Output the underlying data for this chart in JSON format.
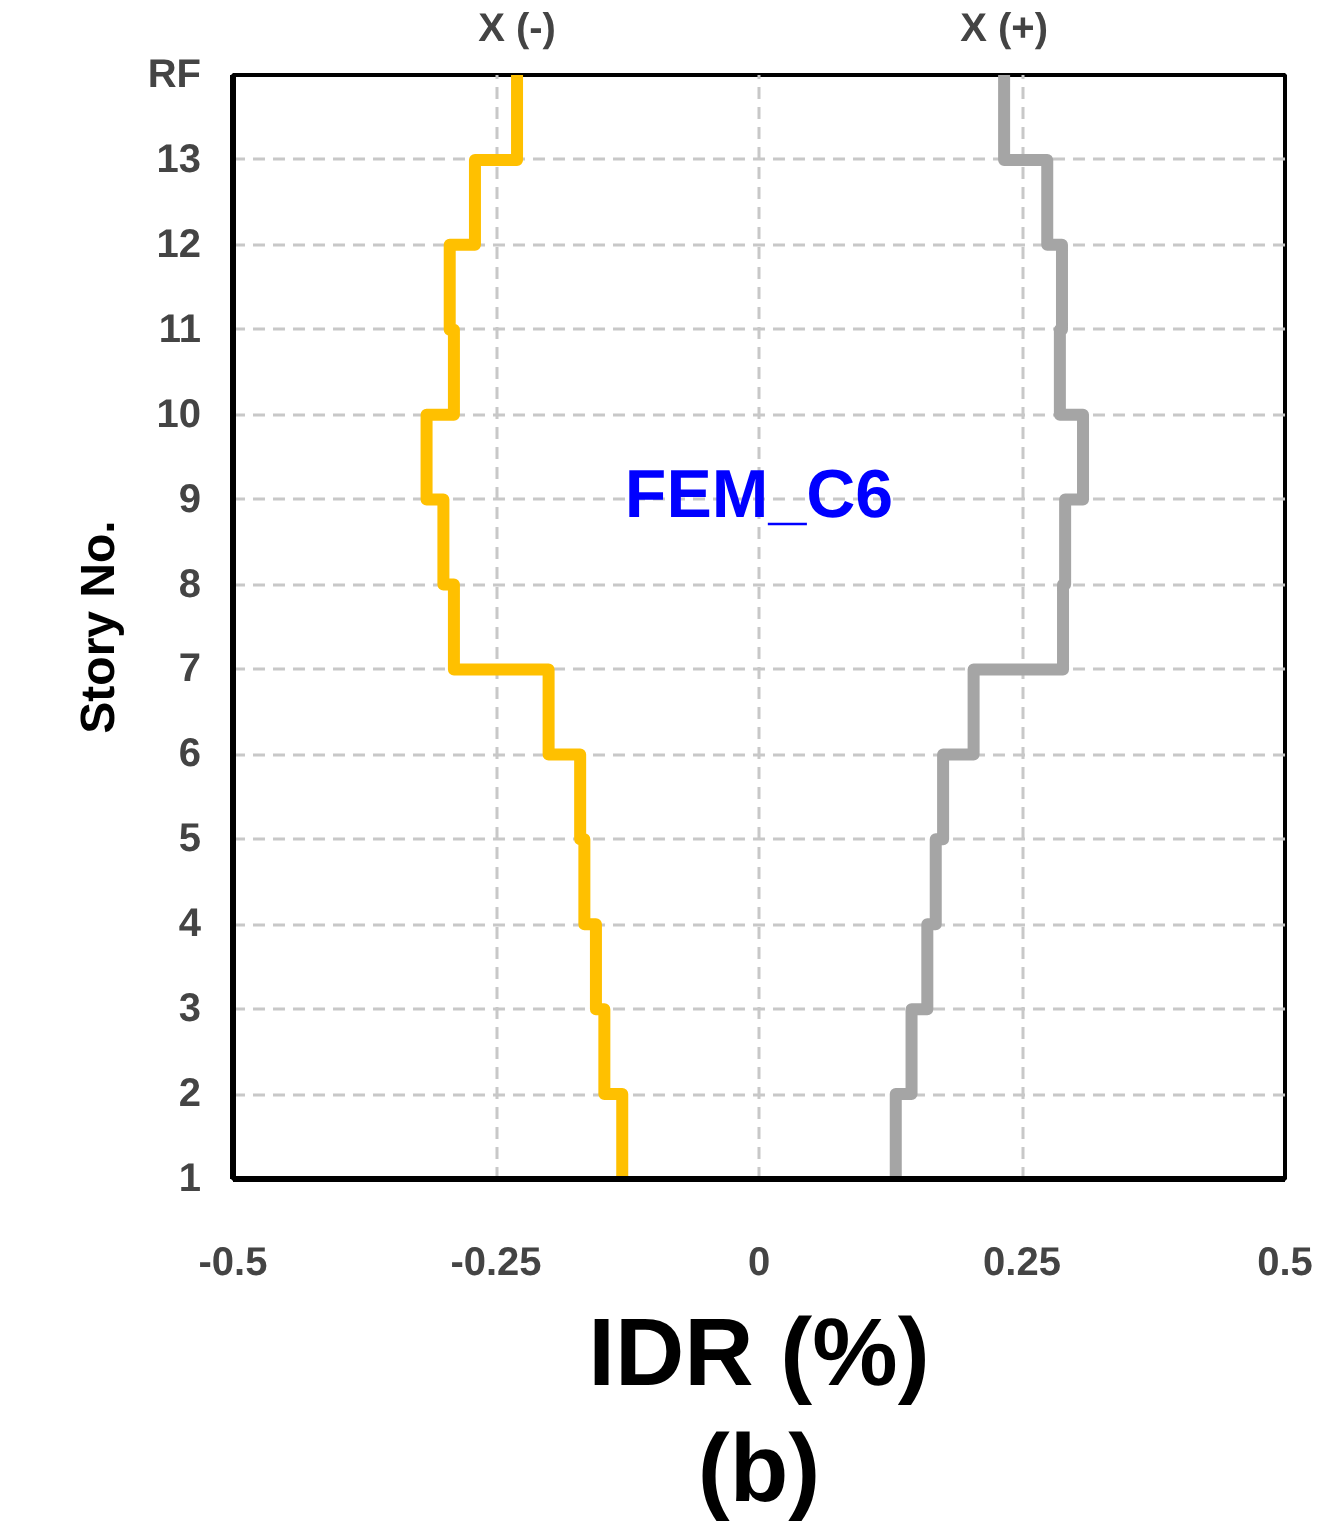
{
  "chart_data": {
    "type": "step",
    "orientation": "horizontal",
    "categories": [
      "RF",
      "13",
      "12",
      "11",
      "10",
      "9",
      "8",
      "7",
      "6",
      "5",
      "4",
      "3",
      "2",
      "1"
    ],
    "series": [
      {
        "name": "X (-)",
        "color": "#ffc000",
        "values": [
          -0.23,
          -0.23,
          -0.27,
          -0.294,
          -0.29,
          -0.316,
          -0.3,
          -0.29,
          -0.2,
          -0.17,
          -0.166,
          -0.155,
          -0.147,
          -0.13
        ]
      },
      {
        "name": "X (+)",
        "color": "#a5a5a5",
        "values": [
          0.233,
          0.233,
          0.274,
          0.288,
          0.286,
          0.308,
          0.291,
          0.289,
          0.204,
          0.175,
          0.168,
          0.16,
          0.145,
          0.13
        ]
      }
    ],
    "xlim": [
      -0.5,
      0.5
    ],
    "xticks": [
      -0.5,
      -0.25,
      0,
      0.25,
      0.5
    ],
    "xlabel": "IDR (%)",
    "ylabel": "Story No.",
    "annotations": [
      "FEM_C6",
      "(b)"
    ],
    "grid": true,
    "line_style": "solid"
  }
}
